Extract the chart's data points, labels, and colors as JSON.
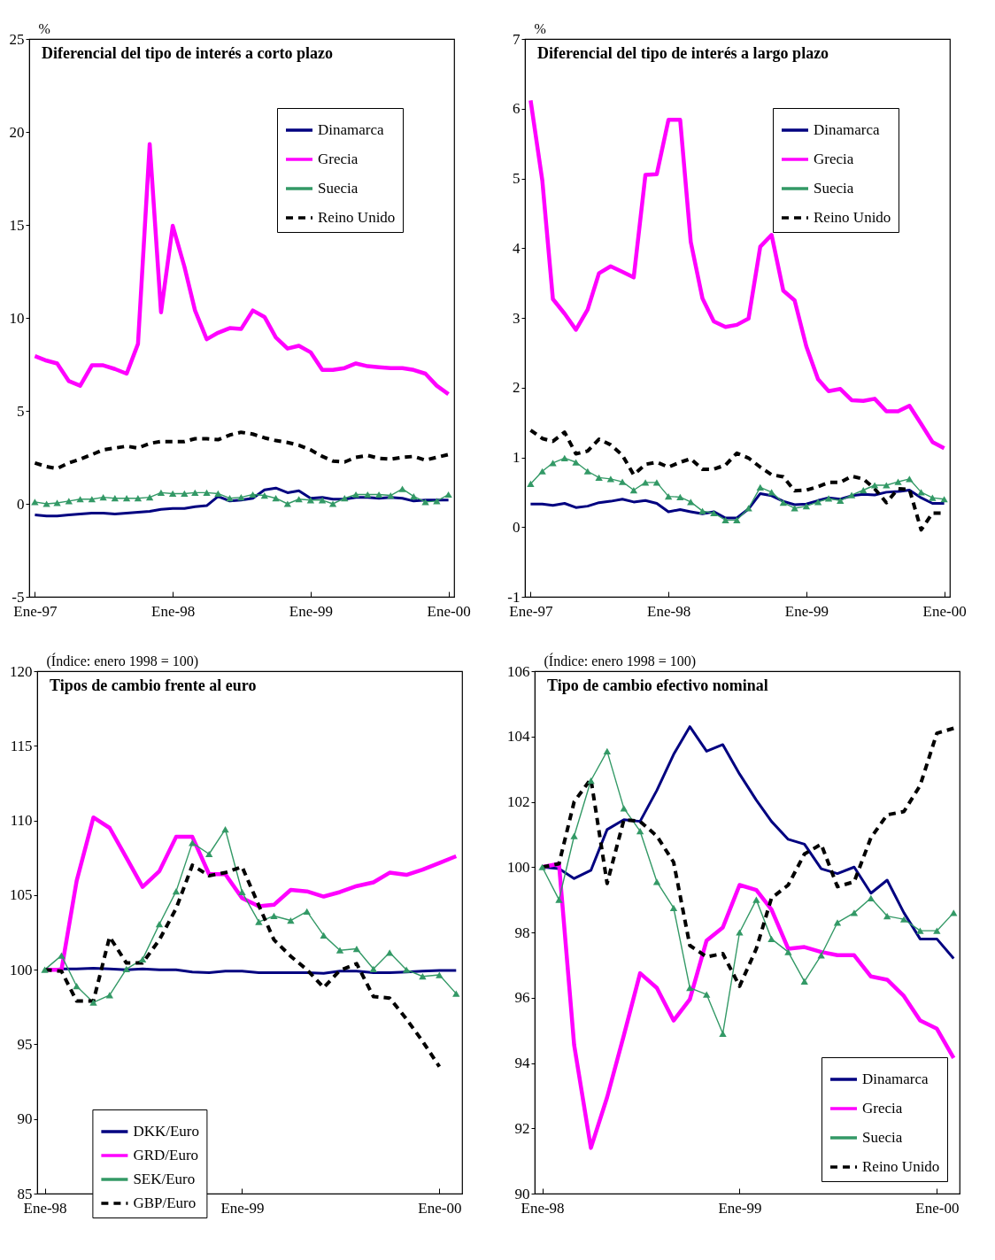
{
  "chart_data": [
    {
      "type": "line",
      "title": "Diferencial del tipo de interés a corto plazo",
      "ylabel": "%",
      "x": [
        "1997-01",
        "1997-02",
        "1997-03",
        "1997-04",
        "1997-05",
        "1997-06",
        "1997-07",
        "1997-08",
        "1997-09",
        "1997-10",
        "1997-11",
        "1997-12",
        "1998-01",
        "1998-02",
        "1998-03",
        "1998-04",
        "1998-05",
        "1998-06",
        "1998-07",
        "1998-08",
        "1998-09",
        "1998-10",
        "1998-11",
        "1998-12",
        "1999-01",
        "1999-02",
        "1999-03",
        "1999-04",
        "1999-05",
        "1999-06",
        "1999-07",
        "1999-08",
        "1999-09",
        "1999-10",
        "1999-11",
        "1999-12",
        "2000-01"
      ],
      "series": [
        {
          "name": "Dinamarca",
          "color": "#000080",
          "values": [
            -0.6,
            -0.65,
            -0.65,
            -0.6,
            -0.55,
            -0.5,
            -0.5,
            -0.55,
            -0.5,
            -0.45,
            -0.4,
            -0.3,
            -0.25,
            -0.25,
            -0.15,
            -0.1,
            0.4,
            0.15,
            0.2,
            0.3,
            0.75,
            0.85,
            0.6,
            0.7,
            0.3,
            0.35,
            0.25,
            0.25,
            0.35,
            0.35,
            0.3,
            0.35,
            0.3,
            0.15,
            0.2,
            0.2,
            0.2
          ]
        },
        {
          "name": "Grecia",
          "color": "#ff00ff",
          "values": [
            7.95,
            7.7,
            7.55,
            6.6,
            6.35,
            7.45,
            7.45,
            7.25,
            7.0,
            8.6,
            19.35,
            10.3,
            14.95,
            12.75,
            10.4,
            8.85,
            9.2,
            9.45,
            9.4,
            10.4,
            10.05,
            8.95,
            8.35,
            8.5,
            8.15,
            7.2,
            7.2,
            7.3,
            7.55,
            7.4,
            7.35,
            7.3,
            7.3,
            7.2,
            7.0,
            6.35,
            5.9
          ]
        },
        {
          "name": "Suecia",
          "color": "#339966",
          "marker": "triangle",
          "values": [
            0.1,
            0.0,
            0.05,
            0.15,
            0.25,
            0.25,
            0.35,
            0.3,
            0.3,
            0.3,
            0.35,
            0.6,
            0.55,
            0.55,
            0.6,
            0.6,
            0.55,
            0.3,
            0.35,
            0.5,
            0.45,
            0.3,
            0.0,
            0.25,
            0.2,
            0.2,
            0.0,
            0.3,
            0.5,
            0.5,
            0.5,
            0.45,
            0.8,
            0.4,
            0.1,
            0.15,
            0.5
          ]
        },
        {
          "name": "Reino Unido",
          "color": "#000000",
          "line_style": "dashed",
          "values": [
            2.2,
            2.0,
            1.9,
            2.2,
            2.4,
            2.65,
            2.9,
            3.0,
            3.1,
            3.0,
            3.25,
            3.35,
            3.35,
            3.35,
            3.5,
            3.5,
            3.45,
            3.7,
            3.85,
            3.75,
            3.55,
            3.4,
            3.3,
            3.15,
            2.9,
            2.55,
            2.3,
            2.25,
            2.5,
            2.6,
            2.45,
            2.4,
            2.5,
            2.55,
            2.35,
            2.5,
            2.65
          ]
        }
      ],
      "xlim": [
        "1996-12-17",
        "2000-01-16"
      ],
      "xticks": [
        {
          "value": "1997-01",
          "label": "Ene-97"
        },
        {
          "value": "1998-01",
          "label": "Ene-98"
        },
        {
          "value": "1999-01",
          "label": "Ene-99"
        },
        {
          "value": "2000-01",
          "label": "Ene-00"
        }
      ],
      "ylim": [
        -5,
        25
      ],
      "yticks": [
        -5,
        0,
        5,
        10,
        15,
        20,
        25
      ],
      "legend": "top right"
    },
    {
      "type": "line",
      "title": "Diferencial del tipo de interés a largo plazo",
      "ylabel": "%",
      "x": [
        "1997-01",
        "1997-02",
        "1997-03",
        "1997-04",
        "1997-05",
        "1997-06",
        "1997-07",
        "1997-08",
        "1997-09",
        "1997-10",
        "1997-11",
        "1997-12",
        "1998-01",
        "1998-02",
        "1998-03",
        "1998-04",
        "1998-05",
        "1998-06",
        "1998-07",
        "1998-08",
        "1998-09",
        "1998-10",
        "1998-11",
        "1998-12",
        "1999-01",
        "1999-02",
        "1999-03",
        "1999-04",
        "1999-05",
        "1999-06",
        "1999-07",
        "1999-08",
        "1999-09",
        "1999-10",
        "1999-11",
        "1999-12",
        "2000-01"
      ],
      "series": [
        {
          "name": "Dinamarca",
          "color": "#000080",
          "values": [
            0.33,
            0.33,
            0.31,
            0.34,
            0.28,
            0.3,
            0.35,
            0.37,
            0.4,
            0.36,
            0.38,
            0.34,
            0.22,
            0.25,
            0.22,
            0.19,
            0.22,
            0.13,
            0.13,
            0.26,
            0.48,
            0.45,
            0.37,
            0.32,
            0.33,
            0.38,
            0.42,
            0.4,
            0.45,
            0.47,
            0.46,
            0.5,
            0.51,
            0.53,
            0.42,
            0.34,
            0.34
          ]
        },
        {
          "name": "Grecia",
          "color": "#ff00ff",
          "values": [
            6.12,
            4.97,
            3.27,
            3.06,
            2.83,
            3.12,
            3.64,
            3.74,
            3.66,
            3.58,
            5.05,
            5.06,
            5.84,
            5.84,
            4.09,
            3.28,
            2.95,
            2.87,
            2.9,
            2.99,
            4.02,
            4.19,
            3.39,
            3.25,
            2.59,
            2.12,
            1.95,
            1.98,
            1.82,
            1.81,
            1.84,
            1.66,
            1.66,
            1.74,
            1.48,
            1.22,
            1.13
          ]
        },
        {
          "name": "Suecia",
          "color": "#339966",
          "marker": "triangle",
          "values": [
            0.62,
            0.8,
            0.92,
            0.99,
            0.93,
            0.8,
            0.71,
            0.69,
            0.65,
            0.53,
            0.64,
            0.64,
            0.44,
            0.43,
            0.36,
            0.23,
            0.2,
            0.1,
            0.1,
            0.27,
            0.57,
            0.5,
            0.35,
            0.27,
            0.3,
            0.36,
            0.41,
            0.38,
            0.46,
            0.53,
            0.6,
            0.6,
            0.65,
            0.69,
            0.5,
            0.42,
            0.4
          ]
        },
        {
          "name": "Reino Unido",
          "color": "#000000",
          "line_style": "dashed",
          "values": [
            1.39,
            1.27,
            1.23,
            1.36,
            1.05,
            1.09,
            1.26,
            1.18,
            1.03,
            0.75,
            0.9,
            0.93,
            0.86,
            0.93,
            0.98,
            0.83,
            0.83,
            0.89,
            1.06,
            0.99,
            0.86,
            0.75,
            0.72,
            0.52,
            0.53,
            0.58,
            0.64,
            0.64,
            0.73,
            0.69,
            0.55,
            0.35,
            0.55,
            0.54,
            -0.04,
            0.2,
            0.2
          ]
        }
      ],
      "xlim": [
        "1996-12-17",
        "2000-01-16"
      ],
      "xticks": [
        {
          "value": "1997-01",
          "label": "Ene-97"
        },
        {
          "value": "1998-01",
          "label": "Ene-98"
        },
        {
          "value": "1999-01",
          "label": "Ene-99"
        },
        {
          "value": "2000-01",
          "label": "Ene-00"
        }
      ],
      "ylim": [
        -1,
        7
      ],
      "yticks": [
        -1,
        0,
        1,
        2,
        3,
        4,
        5,
        6,
        7
      ],
      "legend": "top right"
    },
    {
      "type": "line",
      "title": "Tipos de cambio frente al euro",
      "ylabel": "(Índice:  enero 1998 = 100)",
      "x": [
        "1998-01",
        "1998-02",
        "1998-03",
        "1998-04",
        "1998-05",
        "1998-06",
        "1998-07",
        "1998-08",
        "1998-09",
        "1998-10",
        "1998-11",
        "1998-12",
        "1999-01",
        "1999-02",
        "1999-03",
        "1999-04",
        "1999-05",
        "1999-06",
        "1999-07",
        "1999-08",
        "1999-09",
        "1999-10",
        "1999-11",
        "1999-12",
        "2000-01",
        "2000-02"
      ],
      "series": [
        {
          "name": "DKK/Euro",
          "color": "#000080",
          "values": [
            100,
            100.05,
            100.05,
            100.1,
            100.05,
            100.0,
            100.05,
            100.0,
            100.0,
            99.85,
            99.8,
            99.9,
            99.9,
            99.8,
            99.8,
            99.8,
            99.8,
            99.75,
            99.9,
            99.9,
            99.8,
            99.8,
            99.85,
            99.9,
            99.95,
            99.95
          ]
        },
        {
          "name": "GRD/Euro",
          "color": "#ff00ff",
          "values": [
            100,
            100,
            105.95,
            110.2,
            109.5,
            107.5,
            105.55,
            106.6,
            108.9,
            108.9,
            106.4,
            106.4,
            104.8,
            104.25,
            104.35,
            105.35,
            105.25,
            104.9,
            105.2,
            105.6,
            105.85,
            106.5,
            106.35,
            106.7,
            107.15,
            107.6
          ]
        },
        {
          "name": "SEK/Euro",
          "color": "#339966",
          "marker": "triangle",
          "values": [
            100,
            100.95,
            98.9,
            97.8,
            98.3,
            100.05,
            100.7,
            103.05,
            105.25,
            108.5,
            107.75,
            109.4,
            105.2,
            103.2,
            103.6,
            103.3,
            103.9,
            102.3,
            101.3,
            101.4,
            100.05,
            101.15,
            100.0,
            99.55,
            99.65,
            98.4
          ]
        },
        {
          "name": "GBP/Euro",
          "color": "#000000",
          "line_style": "dashed",
          "values": [
            100,
            99.9,
            97.9,
            97.9,
            102.2,
            100.45,
            100.45,
            102.0,
            104.1,
            107.0,
            106.3,
            106.5,
            106.9,
            104.3,
            102.0,
            100.9,
            100.0,
            98.8,
            99.95,
            100.4,
            98.2,
            98.1,
            96.7,
            95.2,
            93.5,
            null
          ]
        }
      ],
      "xlim": [
        "1997-12-18",
        "2000-02-12"
      ],
      "xticks": [
        {
          "value": "1998-01",
          "label": "Ene-98"
        },
        {
          "value": "1999-01",
          "label": "Ene-99"
        },
        {
          "value": "2000-01",
          "label": "Ene-00"
        }
      ],
      "ylim": [
        85,
        120
      ],
      "yticks": [
        85,
        90,
        95,
        100,
        105,
        110,
        115,
        120
      ],
      "legend": "bottom"
    },
    {
      "type": "line",
      "title": "Tipo de cambio efectivo nominal",
      "ylabel": "(Índice: enero 1998 = 100)",
      "x": [
        "1998-01",
        "1998-02",
        "1998-03",
        "1998-04",
        "1998-05",
        "1998-06",
        "1998-07",
        "1998-08",
        "1998-09",
        "1998-10",
        "1998-11",
        "1998-12",
        "1999-01",
        "1999-02",
        "1999-03",
        "1999-04",
        "1999-05",
        "1999-06",
        "1999-07",
        "1999-08",
        "1999-09",
        "1999-10",
        "1999-11",
        "1999-12",
        "2000-01",
        "2000-02"
      ],
      "series": [
        {
          "name": "Dinamarca",
          "color": "#000080",
          "values": [
            100,
            99.95,
            99.65,
            99.9,
            101.15,
            101.45,
            101.4,
            102.35,
            103.45,
            104.3,
            103.55,
            103.75,
            102.85,
            102.05,
            101.4,
            100.85,
            100.7,
            99.95,
            99.8,
            100.0,
            99.2,
            99.6,
            98.6,
            97.8,
            97.8,
            97.2
          ]
        },
        {
          "name": "Grecia",
          "color": "#ff00ff",
          "values": [
            100,
            100.1,
            94.55,
            91.4,
            92.95,
            94.85,
            96.75,
            96.3,
            95.3,
            95.95,
            97.75,
            98.15,
            99.45,
            99.3,
            98.7,
            97.5,
            97.55,
            97.4,
            97.3,
            97.3,
            96.65,
            96.55,
            96.05,
            95.3,
            95.05,
            94.15
          ]
        },
        {
          "name": "Suecia",
          "color": "#339966",
          "marker": "triangle",
          "values": [
            100,
            99.0,
            100.95,
            102.65,
            103.55,
            101.8,
            101.1,
            99.55,
            98.75,
            96.3,
            96.1,
            94.9,
            98.0,
            99.0,
            97.8,
            97.4,
            96.5,
            97.3,
            98.3,
            98.6,
            99.05,
            98.5,
            98.4,
            98.05,
            98.05,
            98.6
          ]
        },
        {
          "name": "Reino Unido",
          "color": "#000000",
          "line_style": "dashed",
          "values": [
            100,
            100.1,
            102.0,
            102.7,
            99.5,
            101.45,
            101.4,
            100.95,
            100.15,
            97.6,
            97.25,
            97.35,
            96.35,
            97.5,
            99.05,
            99.45,
            100.4,
            100.7,
            99.4,
            99.55,
            100.9,
            101.6,
            101.7,
            102.5,
            104.1,
            104.25
          ]
        }
      ],
      "xlim": [
        "1997-12-18",
        "2000-02-12"
      ],
      "xticks": [
        {
          "value": "1998-01",
          "label": "Ene-98"
        },
        {
          "value": "1999-01",
          "label": "Ene-99"
        },
        {
          "value": "2000-01",
          "label": "Ene-00"
        }
      ],
      "ylim": [
        90,
        106
      ],
      "yticks": [
        90,
        92,
        94,
        96,
        98,
        100,
        102,
        104,
        106
      ],
      "legend": "bottom right"
    }
  ]
}
